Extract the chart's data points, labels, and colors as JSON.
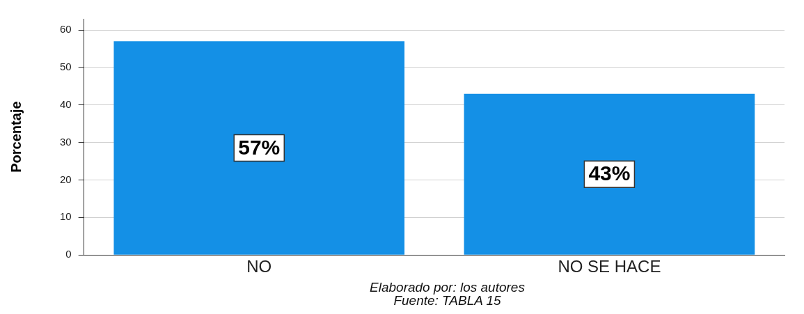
{
  "chart_data": {
    "type": "bar",
    "ylabel": "Porcentaje",
    "categories": [
      "NO",
      "NO SE HACE"
    ],
    "values": [
      57,
      43
    ],
    "value_labels": [
      "57%",
      "43%"
    ],
    "color": "#1490e6",
    "ylim": [
      0,
      63
    ],
    "yticks": [
      0,
      10,
      20,
      30,
      40,
      50,
      60
    ],
    "grid": "y",
    "legend": false,
    "annotations": [
      "Elaborado por: los autores",
      "Fuente: TABLA 15"
    ]
  }
}
